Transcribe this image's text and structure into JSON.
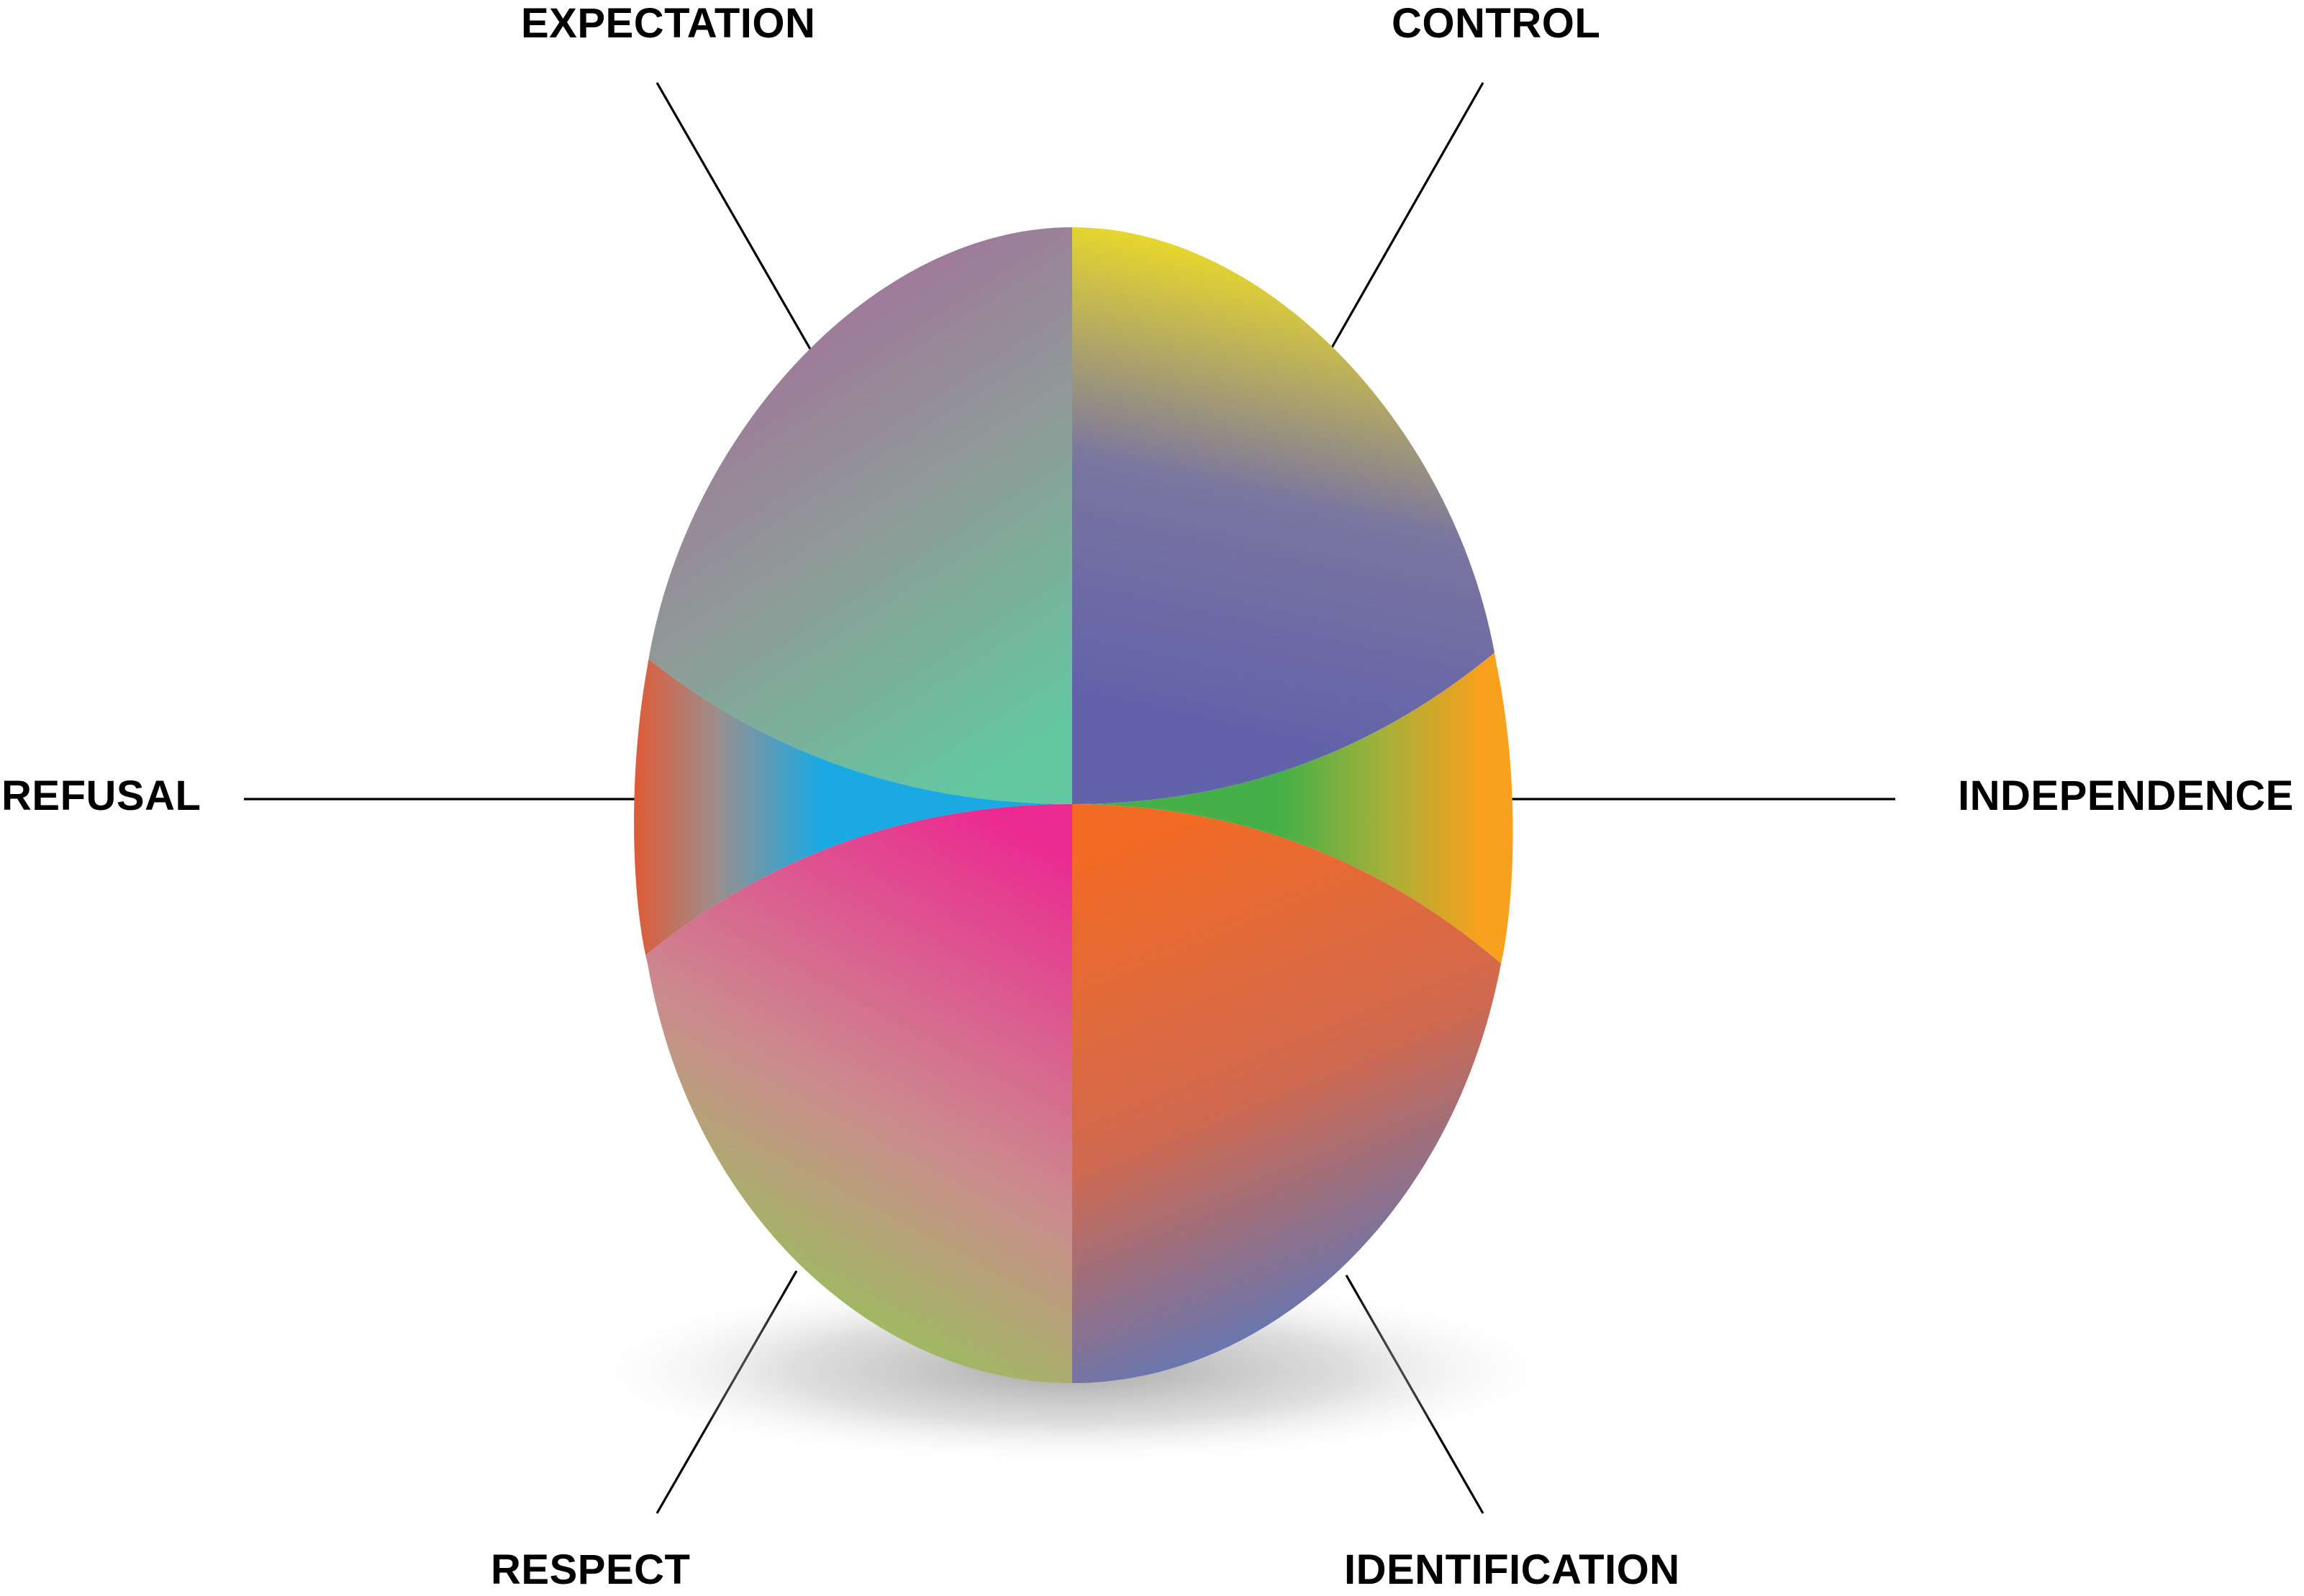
{
  "labels": {
    "expectation": "EXPECTATION",
    "control": "CONTROL",
    "refusal": "REFUSAL",
    "independence": "INDEPENDENCE",
    "respect": "RESPECT",
    "identification": "IDENTIFICATION"
  },
  "segment_colors": {
    "expectation": [
      "#a3709a",
      "#62c8a0"
    ],
    "control": [
      "#e9d82b",
      "#6262aa"
    ],
    "refusal": [
      "#e05a37",
      "#1aa9e2"
    ],
    "independence": [
      "#45b047",
      "#f9a01c"
    ],
    "respect": [
      "#eb2a91",
      "#92c855"
    ],
    "identification": [
      "#f26a24",
      "#4f79c6"
    ]
  },
  "line_color": "#000000",
  "background": "#ffffff"
}
